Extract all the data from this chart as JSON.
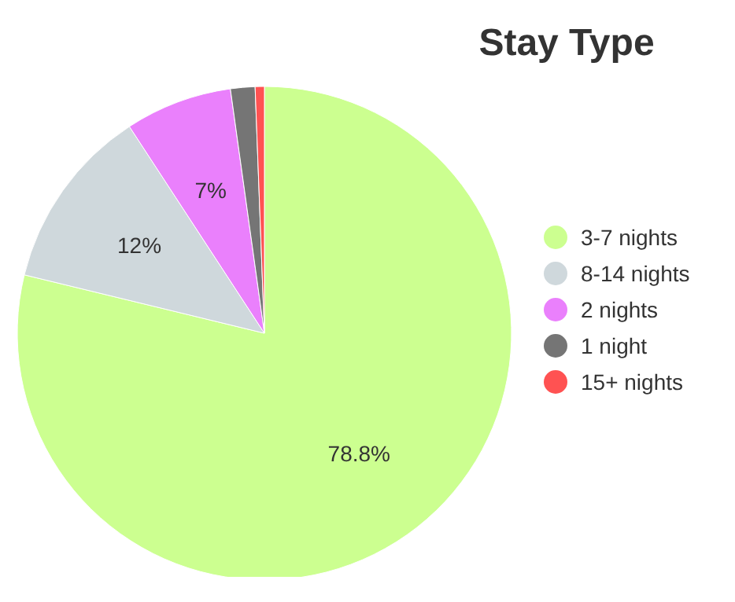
{
  "chart_data": {
    "type": "pie",
    "title": "Stay Type",
    "categories": [
      "3-7 nights",
      "8-14 nights",
      "2 nights",
      "1 night",
      "15+ nights"
    ],
    "values": [
      78.8,
      12,
      7,
      1.6,
      0.6
    ],
    "colors": [
      "#ccff90",
      "#cfd8dc",
      "#ea80fc",
      "#757575",
      "#ff5252"
    ],
    "value_labels": [
      "78.8%",
      "12%",
      "7%",
      null,
      null
    ],
    "legend": "right"
  }
}
